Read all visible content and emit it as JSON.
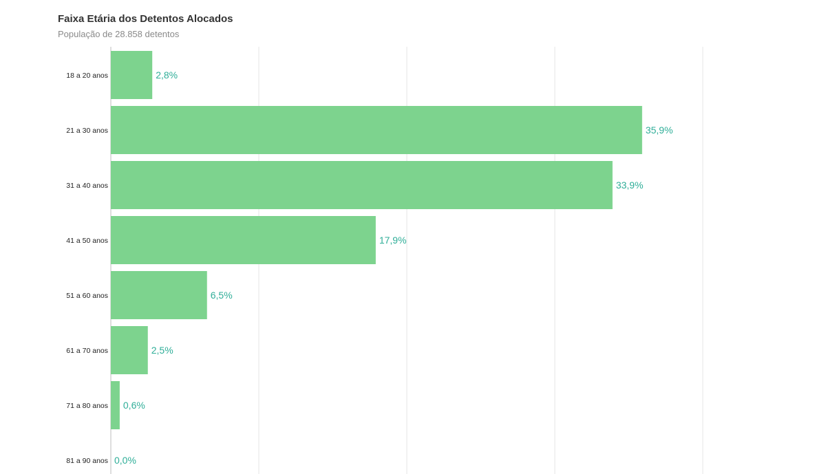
{
  "colors": {
    "bar": "#7dd38e",
    "label": "#2fae98",
    "grid": "#e6e6e6",
    "axis": "#bdbdbd"
  },
  "chart_data": {
    "type": "bar",
    "orientation": "horizontal",
    "title": "Faixa Etária dos Detentos Alocados",
    "subtitle": "População de 28.858 detentos",
    "xlabel": "",
    "ylabel": "",
    "categories": [
      "18 a 20 anos",
      "21 a 30 anos",
      "31 a 40 anos",
      "41 a 50 anos",
      "51 a 60 anos",
      "61 a 70 anos",
      "71 a 80 anos",
      "81 a 90 anos"
    ],
    "values": [
      2.8,
      35.9,
      33.9,
      17.9,
      6.5,
      2.5,
      0.6,
      0.0
    ],
    "data_labels": [
      "2,8%",
      "35,9%",
      "33,9%",
      "17,9%",
      "6,5%",
      "2,5%",
      "0,6%",
      "0,0%"
    ],
    "xlim": [
      0,
      40
    ],
    "grid": true,
    "legend": "none"
  }
}
